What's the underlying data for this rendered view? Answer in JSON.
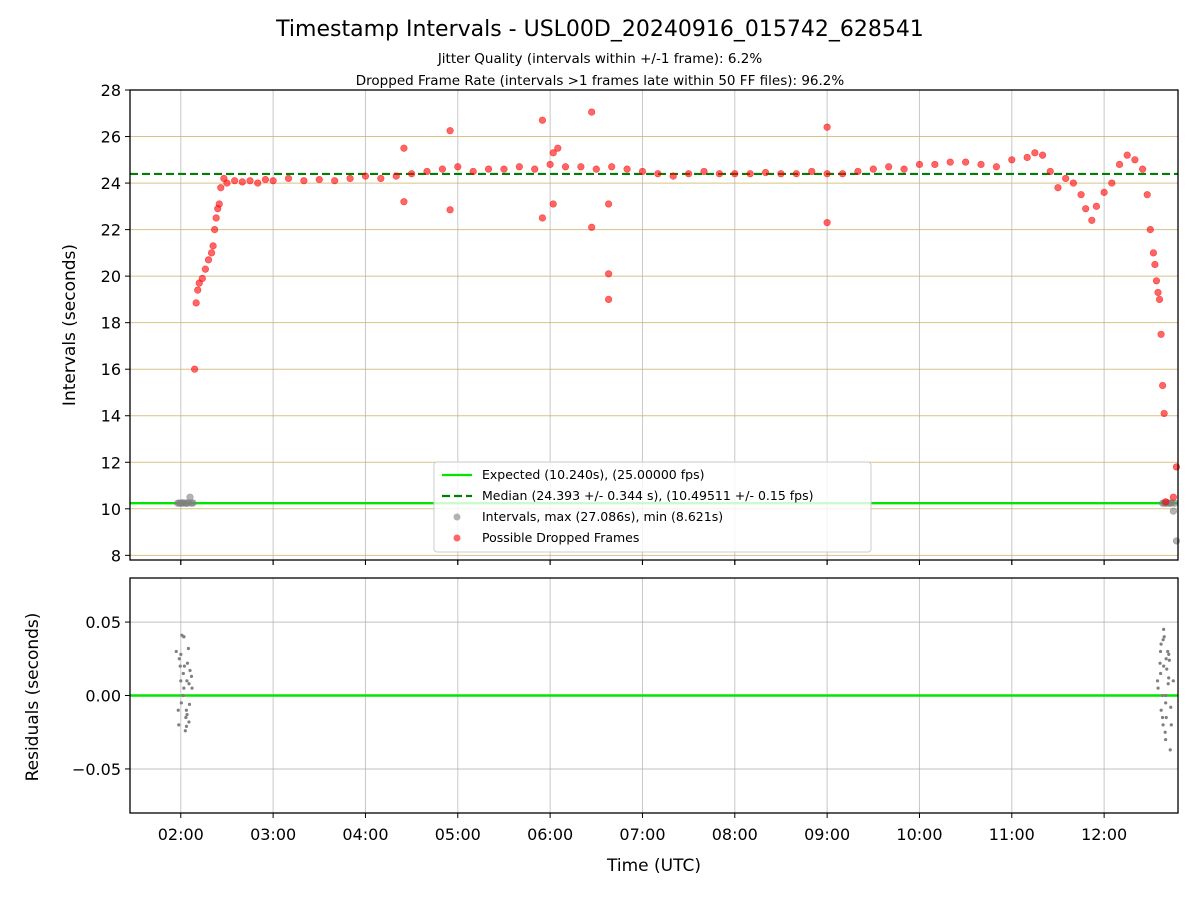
{
  "figure": {
    "title": "Timestamp Intervals - USL00D_20240916_015742_628541",
    "subtitle_1": "Jitter Quality (intervals within +/-1 frame): 6.2%",
    "subtitle_2": "Dropped Frame Rate (intervals >1 frames late within 50 FF files): 96.2%"
  },
  "chart_data": [
    {
      "type": "scatter",
      "panel": "intervals",
      "ylabel": "Intervals (seconds)",
      "xlabel": "",
      "xlim": [
        "01:27",
        "12:48"
      ],
      "ylim": [
        7.8,
        28
      ],
      "yticks": [
        "8",
        "10",
        "12",
        "14",
        "16",
        "18",
        "20",
        "22",
        "24",
        "26",
        "28"
      ],
      "xticks": [
        "02:00",
        "03:00",
        "04:00",
        "05:00",
        "06:00",
        "07:00",
        "08:00",
        "09:00",
        "10:00",
        "11:00",
        "12:00"
      ],
      "grid": true,
      "legend_position": "lower-center",
      "lines": {
        "expected": {
          "name": "Expected (10.240s), (25.00000 fps)",
          "y": 10.24,
          "color": "#00e600"
        },
        "median": {
          "name": "Median (24.393 +/- 0.344 s), (10.49511 +/- 0.15 fps)",
          "y": 24.393,
          "color": "#008000"
        }
      },
      "series": [
        {
          "name": "Intervals, max (27.086s), min (8.621s)",
          "color": "#808080",
          "x": [
            "01:58",
            "01:59",
            "02:00",
            "02:01",
            "02:02",
            "02:03",
            "02:04",
            "02:05",
            "02:06",
            "02:07",
            "02:08",
            "12:38",
            "12:39",
            "12:40",
            "12:41",
            "12:42",
            "12:43",
            "12:44",
            "12:45",
            "12:46",
            "12:47"
          ],
          "y": [
            10.24,
            10.25,
            10.23,
            10.26,
            10.24,
            10.25,
            10.23,
            10.26,
            10.5,
            10.24,
            10.25,
            10.24,
            10.25,
            10.23,
            10.26,
            10.24,
            10.24,
            10.25,
            9.9,
            10.24,
            8.62
          ]
        },
        {
          "name": "Possible Dropped Frames",
          "color": "#ff0000",
          "x": [
            "02:09",
            "02:10",
            "02:11",
            "02:12",
            "02:14",
            "02:16",
            "02:18",
            "02:20",
            "02:21",
            "02:22",
            "02:23",
            "02:24",
            "02:25",
            "02:26",
            "02:28",
            "02:30",
            "02:35",
            "02:40",
            "02:45",
            "02:50",
            "02:55",
            "03:00",
            "03:10",
            "03:20",
            "03:30",
            "03:40",
            "03:50",
            "04:00",
            "04:10",
            "04:20",
            "04:30",
            "04:40",
            "04:50",
            "05:00",
            "05:10",
            "05:20",
            "05:30",
            "05:40",
            "05:50",
            "06:00",
            "06:10",
            "06:20",
            "06:30",
            "06:40",
            "06:50",
            "07:00",
            "07:10",
            "07:20",
            "07:30",
            "07:40",
            "07:50",
            "08:00",
            "08:10",
            "08:20",
            "08:30",
            "08:40",
            "08:50",
            "09:00",
            "09:10",
            "09:20",
            "09:30",
            "09:40",
            "09:50",
            "10:00",
            "10:10",
            "10:20",
            "10:30",
            "10:40",
            "10:50",
            "11:00",
            "11:10",
            "11:15",
            "11:20",
            "11:25",
            "11:30",
            "11:35",
            "11:40",
            "11:45",
            "11:48",
            "11:52",
            "11:55",
            "12:00",
            "12:05",
            "12:10",
            "12:15",
            "12:20",
            "12:25",
            "12:28",
            "12:30",
            "12:32",
            "12:33",
            "12:34",
            "12:35",
            "12:36",
            "12:37",
            "12:38",
            "12:39",
            "12:40",
            "12:45",
            "12:47",
            "04:25",
            "04:25",
            "04:55",
            "04:55",
            "05:55",
            "05:55",
            "06:02",
            "06:02",
            "06:05",
            "06:27",
            "06:27",
            "06:38",
            "06:38",
            "06:38",
            "09:00",
            "09:00"
          ],
          "y": [
            16.0,
            18.85,
            19.4,
            19.7,
            19.9,
            20.3,
            20.7,
            21.0,
            21.3,
            22.0,
            22.5,
            22.9,
            23.1,
            23.8,
            24.2,
            24.0,
            24.1,
            24.05,
            24.1,
            24.0,
            24.15,
            24.1,
            24.2,
            24.1,
            24.15,
            24.1,
            24.2,
            24.3,
            24.2,
            24.3,
            24.4,
            24.5,
            24.6,
            24.7,
            24.5,
            24.6,
            24.6,
            24.7,
            24.6,
            24.8,
            24.7,
            24.7,
            24.6,
            24.7,
            24.6,
            24.5,
            24.4,
            24.3,
            24.4,
            24.5,
            24.4,
            24.4,
            24.4,
            24.45,
            24.4,
            24.4,
            24.5,
            24.4,
            24.4,
            24.5,
            24.6,
            24.7,
            24.6,
            24.8,
            24.8,
            24.9,
            24.9,
            24.8,
            24.7,
            25.0,
            25.1,
            25.3,
            25.2,
            24.5,
            23.8,
            24.2,
            24.0,
            23.5,
            22.9,
            22.4,
            23.0,
            23.6,
            24.0,
            24.8,
            25.2,
            25.0,
            24.6,
            23.5,
            22.0,
            21.0,
            20.5,
            19.8,
            19.3,
            19.0,
            17.5,
            15.3,
            14.1,
            10.3,
            10.5,
            11.8,
            25.5,
            23.2,
            26.25,
            22.85,
            26.7,
            22.5,
            25.3,
            23.1,
            25.5,
            27.05,
            22.1,
            23.1,
            20.1,
            19.0,
            26.4,
            22.3
          ]
        }
      ]
    },
    {
      "type": "scatter",
      "panel": "residuals",
      "ylabel": "Residuals (seconds)",
      "xlabel": "Time (UTC)",
      "xlim": [
        "01:27",
        "12:48"
      ],
      "ylim": [
        -0.08,
        0.08
      ],
      "yticks": [
        "−0.05",
        "0.00",
        "0.05"
      ],
      "xticks": [
        "02:00",
        "03:00",
        "04:00",
        "05:00",
        "06:00",
        "07:00",
        "08:00",
        "09:00",
        "10:00",
        "11:00",
        "12:00"
      ],
      "grid": true,
      "zero_line_color": "#00e600",
      "series": [
        {
          "name": "",
          "color": "#808080",
          "x": [
            "01:59",
            "01:59",
            "01:59",
            "02:00",
            "02:00",
            "02:00",
            "02:00",
            "02:01",
            "02:01",
            "02:01",
            "02:01",
            "02:02",
            "02:02",
            "02:02",
            "02:02",
            "02:03",
            "02:03",
            "02:03",
            "02:03",
            "02:04",
            "02:04",
            "02:04",
            "02:05",
            "02:05",
            "02:05",
            "02:05",
            "02:06",
            "02:06",
            "02:06",
            "02:06",
            "12:36",
            "12:36",
            "12:36",
            "12:37",
            "12:37",
            "12:37",
            "12:37",
            "12:38",
            "12:38",
            "12:38",
            "12:38",
            "12:39",
            "12:39",
            "12:39",
            "12:39",
            "12:40",
            "12:40",
            "12:40",
            "12:40",
            "12:41",
            "12:41",
            "12:41",
            "12:41",
            "12:42",
            "12:42",
            "12:42",
            "12:42",
            "12:43",
            "12:43",
            "12:43"
          ],
          "y": [
            0.03,
            -0.01,
            0.02,
            0.04,
            -0.02,
            0.01,
            0.0,
            0.025,
            -0.005,
            0.015,
            -0.024,
            0.041,
            0.005,
            -0.015,
            0.028,
            0.02,
            -0.01,
            0.032,
            0.0,
            0.01,
            -0.018,
            0.04,
            0.022,
            -0.006,
            0.013,
            -0.021,
            0.017,
            0.005,
            -0.013,
            0.008,
            0.03,
            -0.015,
            0.01,
            0.035,
            -0.02,
            0.005,
            0.022,
            0.045,
            -0.03,
            0.015,
            0.0,
            0.025,
            -0.01,
            0.038,
            -0.025,
            0.012,
            0.02,
            -0.005,
            0.03,
            0.04,
            -0.015,
            0.008,
            -0.037,
            0.018,
            0.028,
            -0.008,
            0.0,
            0.024,
            -0.02,
            0.01
          ]
        }
      ]
    }
  ]
}
